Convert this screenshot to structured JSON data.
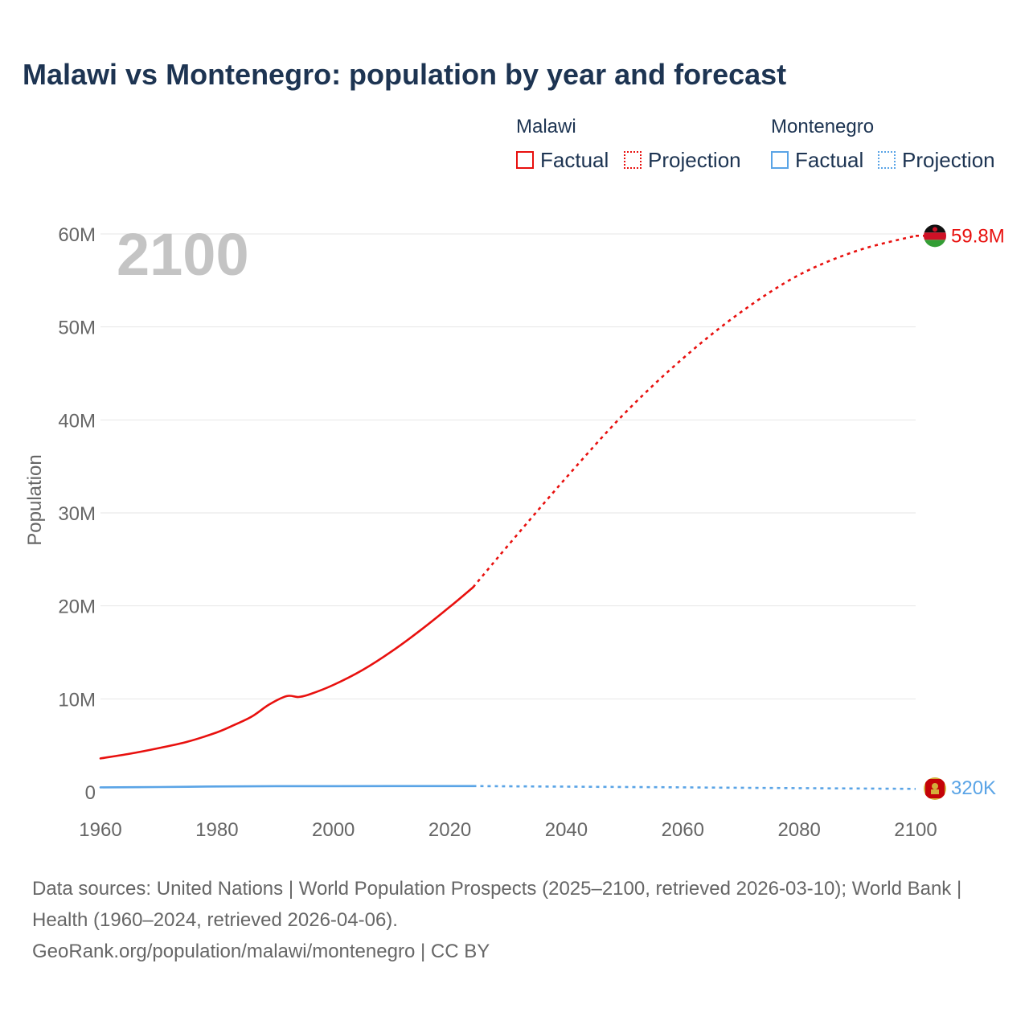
{
  "title": "Malawi vs Montenegro: population by year and forecast",
  "legend": {
    "groups": [
      {
        "name": "Malawi",
        "color": "#e8100e",
        "factual_label": "Factual",
        "projection_label": "Projection"
      },
      {
        "name": "Montenegro",
        "color": "#5aa4e6",
        "factual_label": "Factual",
        "projection_label": "Projection"
      }
    ]
  },
  "year_overlay": "2100",
  "footer": {
    "sources": "Data sources: United Nations | World Population Prospects (2025–2100, retrieved 2026-03-10); World Bank | Health (1960–2024, retrieved 2026-04-06).",
    "credit": "GeoRank.org/population/malawi/montenegro | CC BY"
  },
  "chart_data": {
    "type": "line",
    "title": "Malawi vs Montenegro: population by year and forecast",
    "xlabel": "",
    "ylabel": "Population",
    "xlim": [
      1960,
      2100
    ],
    "ylim": [
      0,
      60000000
    ],
    "x_ticks": [
      1960,
      1980,
      2000,
      2020,
      2040,
      2060,
      2080,
      2100
    ],
    "x_tick_labels": [
      "1960",
      "1980",
      "2000",
      "2020",
      "2040",
      "2060",
      "2080",
      "2100"
    ],
    "y_ticks": [
      0,
      10000000,
      20000000,
      30000000,
      40000000,
      50000000,
      60000000
    ],
    "y_tick_labels": [
      "0",
      "10M",
      "20M",
      "30M",
      "40M",
      "50M",
      "60M"
    ],
    "grid": true,
    "series": [
      {
        "name": "Malawi",
        "color": "#e8100e",
        "end_label": "59.8M",
        "factual": {
          "x": [
            1960,
            1965,
            1970,
            1975,
            1980,
            1983,
            1986,
            1989,
            1992,
            1994,
            1996,
            2000,
            2005,
            2010,
            2015,
            2020,
            2024
          ],
          "y": [
            3600000,
            4100000,
            4700000,
            5400000,
            6400000,
            7200000,
            8100000,
            9400000,
            10300000,
            10200000,
            10500000,
            11500000,
            13100000,
            15100000,
            17400000,
            19900000,
            22000000
          ]
        },
        "projection": {
          "x": [
            2024,
            2030,
            2040,
            2050,
            2060,
            2070,
            2080,
            2090,
            2100
          ],
          "y": [
            22000000,
            26500000,
            33800000,
            40700000,
            46600000,
            51600000,
            55600000,
            58200000,
            59800000
          ]
        }
      },
      {
        "name": "Montenegro",
        "color": "#5aa4e6",
        "end_label": "320K",
        "factual": {
          "x": [
            1960,
            1970,
            1980,
            1990,
            2000,
            2010,
            2020,
            2024
          ],
          "y": [
            480000,
            520000,
            580000,
            610000,
            610000,
            620000,
            620000,
            620000
          ]
        },
        "projection": {
          "x": [
            2024,
            2040,
            2060,
            2080,
            2100
          ],
          "y": [
            620000,
            560000,
            480000,
            400000,
            320000
          ]
        }
      }
    ]
  }
}
